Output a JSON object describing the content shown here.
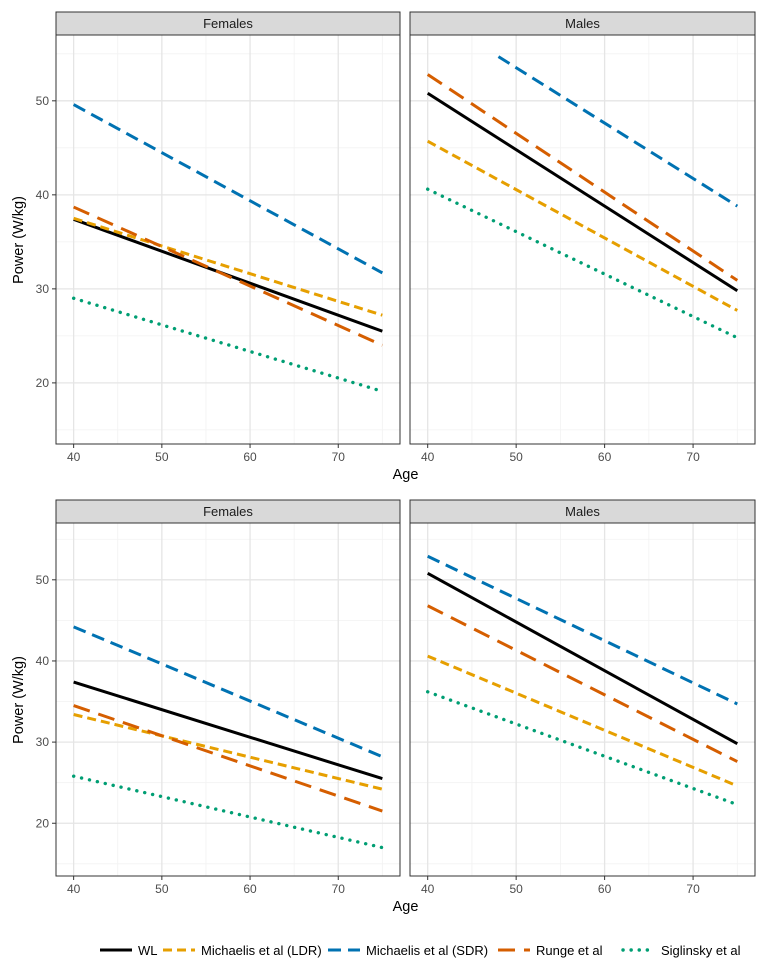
{
  "chart_data": [
    {
      "type": "line",
      "ylabel": "Power (W/kg)",
      "xlabel": "Age",
      "xlim": [
        38,
        77
      ],
      "ylim": [
        13.5,
        57
      ],
      "xticks": [
        40,
        50,
        60,
        70
      ],
      "yticks": [
        20,
        30,
        40,
        50
      ],
      "grid": true,
      "panels": [
        {
          "strip": "Females",
          "series": [
            {
              "name": "WL",
              "x": [
                40,
                75
              ],
              "y": [
                37.4,
                25.5
              ]
            },
            {
              "name": "Michaelis et al (LDR)",
              "x": [
                40,
                75
              ],
              "y": [
                37.5,
                27.2
              ]
            },
            {
              "name": "Michaelis et al (SDR)",
              "x": [
                40,
                75
              ],
              "y": [
                49.6,
                31.7
              ]
            },
            {
              "name": "Runge et al",
              "x": [
                40,
                75
              ],
              "y": [
                38.7,
                24.0
              ]
            },
            {
              "name": "Siglinsky et al",
              "x": [
                40,
                75
              ],
              "y": [
                29.0,
                19.1
              ]
            }
          ]
        },
        {
          "strip": "Males",
          "series": [
            {
              "name": "WL",
              "x": [
                40,
                75
              ],
              "y": [
                50.8,
                29.8
              ]
            },
            {
              "name": "Michaelis et al (LDR)",
              "x": [
                40,
                75
              ],
              "y": [
                45.7,
                27.7
              ]
            },
            {
              "name": "Michaelis et al (SDR)",
              "x": [
                48,
                75
              ],
              "y": [
                54.7,
                38.8
              ]
            },
            {
              "name": "Runge et al",
              "x": [
                40,
                75
              ],
              "y": [
                52.8,
                30.9
              ]
            },
            {
              "name": "Siglinsky et al",
              "x": [
                40,
                75
              ],
              "y": [
                40.6,
                24.8
              ]
            }
          ]
        }
      ]
    },
    {
      "type": "line",
      "ylabel": "Power (W/kg)",
      "xlabel": "Age",
      "xlim": [
        38,
        77
      ],
      "ylim": [
        13.5,
        57
      ],
      "xticks": [
        40,
        50,
        60,
        70
      ],
      "yticks": [
        20,
        30,
        40,
        50
      ],
      "grid": true,
      "panels": [
        {
          "strip": "Females",
          "series": [
            {
              "name": "WL",
              "x": [
                40,
                75
              ],
              "y": [
                37.4,
                25.5
              ]
            },
            {
              "name": "Michaelis et al (LDR)",
              "x": [
                40,
                75
              ],
              "y": [
                33.4,
                24.2
              ]
            },
            {
              "name": "Michaelis et al (SDR)",
              "x": [
                40,
                75
              ],
              "y": [
                44.2,
                28.2
              ]
            },
            {
              "name": "Runge et al",
              "x": [
                40,
                75
              ],
              "y": [
                34.5,
                21.5
              ]
            },
            {
              "name": "Siglinsky et al",
              "x": [
                40,
                75
              ],
              "y": [
                25.8,
                17.0
              ]
            }
          ]
        },
        {
          "strip": "Males",
          "series": [
            {
              "name": "WL",
              "x": [
                40,
                75
              ],
              "y": [
                50.8,
                29.8
              ]
            },
            {
              "name": "Michaelis et al (LDR)",
              "x": [
                40,
                75
              ],
              "y": [
                40.6,
                24.6
              ]
            },
            {
              "name": "Michaelis et al (SDR)",
              "x": [
                40,
                75
              ],
              "y": [
                52.9,
                34.7
              ]
            },
            {
              "name": "Runge et al",
              "x": [
                40,
                75
              ],
              "y": [
                46.8,
                27.6
              ]
            },
            {
              "name": "Siglinsky et al",
              "x": [
                40,
                75
              ],
              "y": [
                36.2,
                22.3
              ]
            }
          ]
        }
      ]
    }
  ],
  "legend": {
    "placement": "bottom",
    "entries": [
      {
        "name": "WL",
        "color": "#000000",
        "style": "solid"
      },
      {
        "name": "Michaelis et al (LDR)",
        "color": "#E69F00",
        "style": "dashed-short"
      },
      {
        "name": "Michaelis et al (SDR)",
        "color": "#0072B2",
        "style": "dashed"
      },
      {
        "name": "Runge et al",
        "color": "#D55E00",
        "style": "dashed-long"
      },
      {
        "name": "Siglinsky et al",
        "color": "#009E73",
        "style": "dotted"
      }
    ]
  }
}
